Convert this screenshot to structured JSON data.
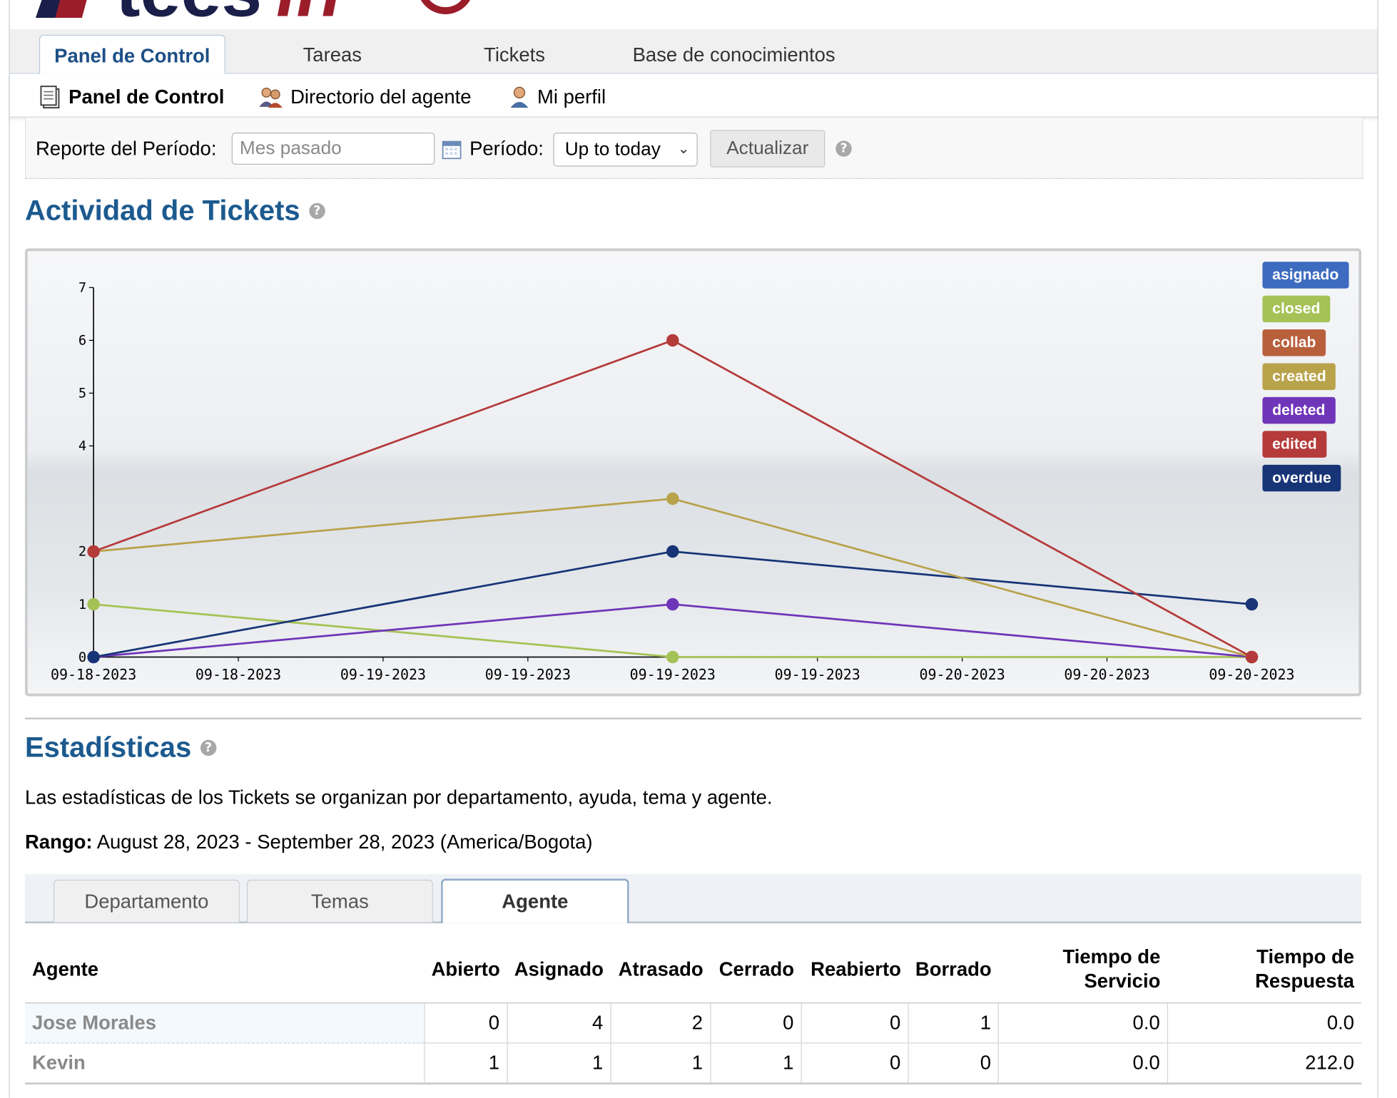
{
  "nav": {
    "tabs": [
      "Panel de Control",
      "Tareas",
      "Tickets",
      "Base de conocimientos"
    ],
    "active_tab": "Panel de Control"
  },
  "subnav": {
    "items": [
      "Panel de Control",
      "Directorio del agente",
      "Mi perfil"
    ]
  },
  "filter": {
    "report_label": "Reporte del Período:",
    "report_placeholder": "Mes pasado",
    "period_label": "Período:",
    "period_value": "Up to today",
    "update_button": "Actualizar"
  },
  "activity": {
    "title": "Actividad de Tickets"
  },
  "chart_data": {
    "type": "line",
    "x": [
      "09-18-2023",
      "09-19-2023",
      "09-20-2023"
    ],
    "x_tick_labels": [
      "09-18-2023",
      "09-18-2023",
      "09-19-2023",
      "09-19-2023",
      "09-19-2023",
      "09-19-2023",
      "09-20-2023",
      "09-20-2023",
      "09-20-2023"
    ],
    "y_ticks": [
      0,
      1,
      2,
      4,
      5,
      6,
      7
    ],
    "ylim": [
      0,
      7
    ],
    "grid": false,
    "legend_position": "top-right",
    "series": [
      {
        "name": "asignado",
        "color": "#3d6bbf",
        "values": null
      },
      {
        "name": "closed",
        "color": "#a4c255",
        "values": [
          1,
          0,
          0
        ]
      },
      {
        "name": "collab",
        "color": "#b85f3c",
        "values": null
      },
      {
        "name": "created",
        "color": "#b8a24a",
        "values": [
          2,
          3,
          0
        ]
      },
      {
        "name": "deleted",
        "color": "#6f35b8",
        "values": [
          0,
          1,
          0
        ]
      },
      {
        "name": "edited",
        "color": "#b53a3a",
        "values": [
          2,
          6,
          0
        ]
      },
      {
        "name": "overdue",
        "color": "#173476",
        "values": [
          0,
          2,
          1
        ]
      }
    ]
  },
  "stats": {
    "title": "Estadísticas",
    "description": "Las estadísticas de los Tickets se organizan por departamento, ayuda, tema y agente.",
    "range_label": "Rango:",
    "range_value": "August 28, 2023 - September 28, 2023 (America/Bogota)",
    "tabs": [
      "Departamento",
      "Temas",
      "Agente"
    ],
    "active_tab": "Agente",
    "columns": [
      "Agente",
      "Abierto",
      "Asignado",
      "Atrasado",
      "Cerrado",
      "Reabierto",
      "Borrado",
      "Tiempo de Servicio",
      "Tiempo de Respuesta"
    ],
    "rows": [
      {
        "agent": "Jose Morales",
        "values": [
          "0",
          "4",
          "2",
          "0",
          "0",
          "1",
          "0.0",
          "0.0"
        ]
      },
      {
        "agent": "Kevin",
        "values": [
          "1",
          "1",
          "1",
          "1",
          "0",
          "0",
          "0.0",
          "212.0"
        ]
      }
    ]
  }
}
